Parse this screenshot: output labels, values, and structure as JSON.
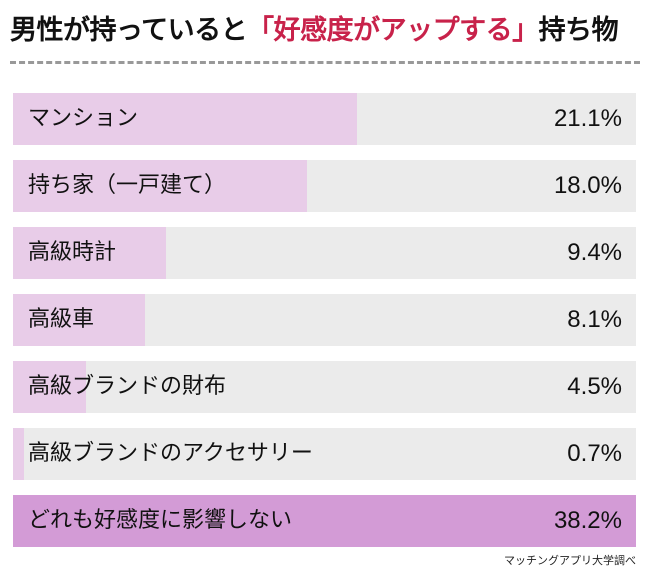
{
  "title": {
    "part1": "男性が持っていると",
    "highlight": "「好感度がアップする」",
    "part2": "持ち物",
    "highlight_color": "#c8224a"
  },
  "source": "マッチングアプリ大学調べ",
  "chart_data": {
    "type": "bar",
    "orientation": "horizontal",
    "categories": [
      "マンション",
      "持ち家（一戸建て）",
      "高級時計",
      "高級車",
      "高級ブランドの財布",
      "高級ブランドのアクセサリー",
      "どれも好感度に影響しない"
    ],
    "values": [
      21.1,
      18.0,
      9.4,
      8.1,
      4.5,
      0.7,
      38.2
    ],
    "value_labels": [
      "21.1%",
      "18.0%",
      "9.4%",
      "8.1%",
      "4.5%",
      "0.7%",
      "38.2%"
    ],
    "xlim": [
      0,
      38.2
    ],
    "colors": {
      "fill": "#e8cce8",
      "highlight": "#d39bd6",
      "track": "#ebebeb"
    }
  }
}
